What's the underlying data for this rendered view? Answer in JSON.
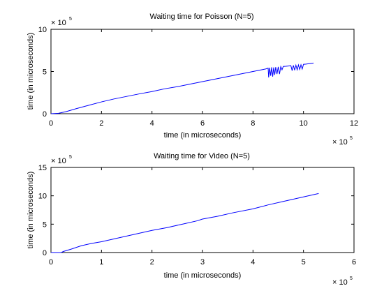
{
  "chart_data": [
    {
      "type": "line",
      "title": "Waiting time for Poisson (N=5)",
      "xlabel": "time (in microseconds)",
      "ylabel": "time (in microseconds)",
      "x_multiplier_label": "× 10",
      "x_multiplier_exp": "5",
      "y_multiplier_label": "× 10",
      "y_multiplier_exp": "5",
      "xlim": [
        0,
        1200000
      ],
      "ylim": [
        0,
        1000000
      ],
      "xticks": [
        0,
        200000,
        400000,
        600000,
        800000,
        1000000,
        1200000
      ],
      "xtick_labels": [
        "0",
        "2",
        "4",
        "6",
        "8",
        "10",
        "12"
      ],
      "yticks": [
        0,
        500000,
        1000000
      ],
      "ytick_labels": [
        "0",
        "5",
        "10"
      ],
      "grid": false,
      "series_color": "#0000ff",
      "series": [
        {
          "x": [
            0,
            30000,
            60000,
            100000,
            150000,
            200000,
            250000,
            300000,
            350000,
            400000,
            450000,
            500000,
            550000,
            600000,
            650000,
            700000,
            750000,
            800000,
            850000,
            860000,
            862000,
            866000,
            870000,
            874000,
            878000,
            882000,
            886000,
            890000,
            895000,
            900000,
            905000,
            910000,
            915000,
            920000,
            930000,
            940000,
            950000,
            955000,
            960000,
            965000,
            970000,
            975000,
            980000,
            985000,
            990000,
            995000,
            1000000,
            1010000,
            1020000,
            1030000,
            1040000
          ],
          "y": [
            0,
            5000,
            25000,
            60000,
            100000,
            140000,
            175000,
            205000,
            235000,
            262000,
            295000,
            320000,
            350000,
            380000,
            410000,
            440000,
            470000,
            500000,
            530000,
            540000,
            430000,
            545000,
            450000,
            550000,
            440000,
            548000,
            460000,
            552000,
            470000,
            555000,
            470000,
            558000,
            520000,
            560000,
            562000,
            565000,
            570000,
            510000,
            572000,
            515000,
            575000,
            520000,
            578000,
            525000,
            580000,
            530000,
            585000,
            588000,
            592000,
            596000,
            600000
          ]
        }
      ]
    },
    {
      "type": "line",
      "title": "Waiting time for Video (N=5)",
      "xlabel": "time (in microseconds)",
      "ylabel": "time (in microseconds)",
      "x_multiplier_label": "× 10",
      "x_multiplier_exp": "5",
      "y_multiplier_label": "× 10",
      "y_multiplier_exp": "5",
      "xlim": [
        0,
        600000
      ],
      "ylim": [
        0,
        1500000
      ],
      "xticks": [
        0,
        100000,
        200000,
        300000,
        400000,
        500000,
        600000
      ],
      "xtick_labels": [
        "0",
        "1",
        "2",
        "3",
        "4",
        "5",
        "6"
      ],
      "yticks": [
        0,
        500000,
        1000000,
        1500000
      ],
      "ytick_labels": [
        "0",
        "5",
        "10",
        "15"
      ],
      "grid": false,
      "series_color": "#0000ff",
      "series": [
        {
          "x": [
            0,
            20000,
            25000,
            40000,
            60000,
            80000,
            100000,
            120000,
            150000,
            180000,
            200000,
            230000,
            260000,
            290000,
            300000,
            330000,
            360000,
            400000,
            430000,
            460000,
            500000,
            530000
          ],
          "y": [
            0,
            0,
            20000,
            60000,
            120000,
            160000,
            190000,
            230000,
            290000,
            350000,
            390000,
            440000,
            500000,
            560000,
            590000,
            640000,
            700000,
            770000,
            840000,
            900000,
            980000,
            1040000
          ]
        }
      ]
    }
  ]
}
